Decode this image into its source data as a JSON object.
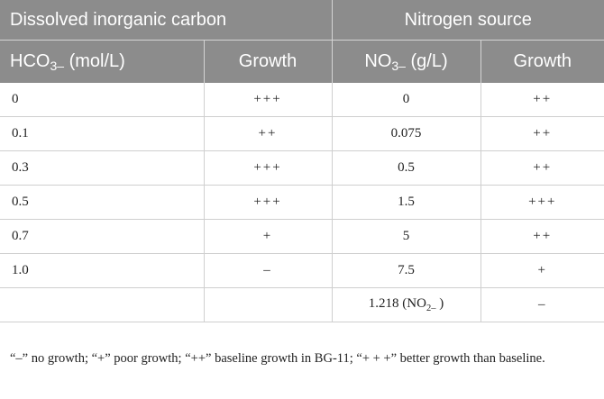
{
  "header": {
    "group1": "Dissolved inorganic carbon",
    "group2": "Nitrogen source",
    "col1_base": "HCO",
    "col1_sub": "3–",
    "col1_unit": " (mol/L)",
    "col2": "Growth",
    "col3_base": "NO",
    "col3_sub": "3–",
    "col3_unit": " (g/L)",
    "col4": "Growth"
  },
  "rows": [
    {
      "c1": "0",
      "c2": "+++",
      "c3": "0",
      "c4": "++"
    },
    {
      "c1": "0.1",
      "c2": "++",
      "c3": "0.075",
      "c4": "++"
    },
    {
      "c1": "0.3",
      "c2": "+++",
      "c3": "0.5",
      "c4": "++"
    },
    {
      "c1": "0.5",
      "c2": "+++",
      "c3": "1.5",
      "c4": "+++"
    },
    {
      "c1": "0.7",
      "c2": "+",
      "c3": "5",
      "c4": "++"
    },
    {
      "c1": "1.0",
      "c2": "–",
      "c3": "7.5",
      "c4": "+"
    },
    {
      "c1": "",
      "c2": "",
      "c3_base": "1.218 (NO",
      "c3_sub": "2–",
      "c3_tail": " )",
      "c4": "–"
    }
  ],
  "footnote": "“–” no growth; “+” poor growth; “++” baseline growth in BG-11; “+ + +” better growth than baseline."
}
